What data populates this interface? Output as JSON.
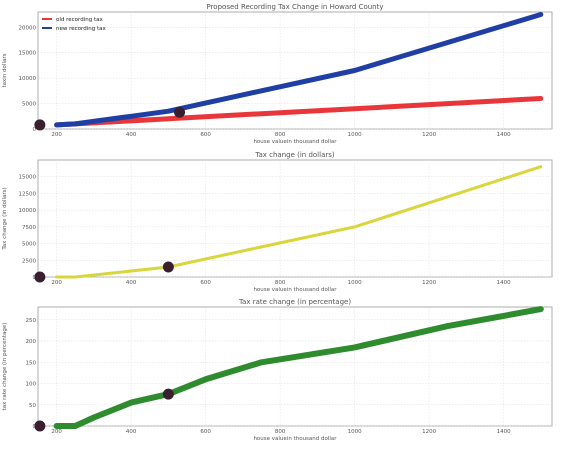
{
  "chart_data": [
    {
      "type": "line",
      "title": "Proposed Recording Tax Change in Howard County",
      "xlabel": "house valuein thousand dollar",
      "ylabel": "taxin dollars",
      "xlim": [
        150,
        1530
      ],
      "ylim": [
        0,
        23000
      ],
      "x_ticks": [
        200,
        400,
        600,
        800,
        1000,
        1200,
        1400
      ],
      "y_ticks": [
        0,
        5000,
        10000,
        15000,
        20000
      ],
      "grid": true,
      "legend": "top-left",
      "series": [
        {
          "name": "old recording tax",
          "color": "#e8363a",
          "x": [
            200,
            250,
            500,
            750,
            1000,
            1250,
            1500
          ],
          "y": [
            800,
            1000,
            2000,
            3000,
            4000,
            5000,
            6000
          ]
        },
        {
          "name": "new recording tax",
          "color": "#1f3fa5",
          "x": [
            200,
            250,
            500,
            750,
            1000,
            1250,
            1500
          ],
          "y": [
            800,
            1000,
            3500,
            7500,
            11500,
            17000,
            22500
          ]
        }
      ],
      "markers": [
        {
          "x": 155,
          "y": 800
        },
        {
          "x": 530,
          "y": 3300
        }
      ]
    },
    {
      "type": "line",
      "title": "Tax change (in dollars)",
      "xlabel": "house valuein thousand dollar",
      "ylabel": "Tax change (in dollars)",
      "xlim": [
        150,
        1530
      ],
      "ylim": [
        0,
        17500
      ],
      "x_ticks": [
        200,
        400,
        600,
        800,
        1000,
        1200,
        1400
      ],
      "y_ticks": [
        0,
        2500,
        5000,
        7500,
        10000,
        12500,
        15000
      ],
      "grid": true,
      "series": [
        {
          "color": "#d8d63a",
          "x": [
            200,
            250,
            500,
            750,
            1000,
            1250,
            1500
          ],
          "y": [
            0,
            0,
            1500,
            4500,
            7500,
            12000,
            16500
          ]
        }
      ],
      "markers": [
        {
          "x": 155,
          "y": 0
        },
        {
          "x": 500,
          "y": 1500
        }
      ]
    },
    {
      "type": "line",
      "title": "Tax rate change (in percentage)",
      "xlabel": "house valuein thousand dollar",
      "ylabel": "tax rate change (in percentage)",
      "xlim": [
        150,
        1530
      ],
      "ylim": [
        0,
        280
      ],
      "x_ticks": [
        200,
        400,
        600,
        800,
        1000,
        1200,
        1400
      ],
      "y_ticks": [
        0,
        50,
        100,
        150,
        200,
        250
      ],
      "grid": true,
      "series": [
        {
          "color": "#2e8b2e",
          "x": [
            200,
            250,
            300,
            400,
            500,
            600,
            750,
            1000,
            1250,
            1500
          ],
          "y": [
            0,
            0,
            20,
            55,
            75,
            110,
            150,
            185,
            235,
            275
          ]
        }
      ],
      "markers": [
        {
          "x": 155,
          "y": 0
        },
        {
          "x": 500,
          "y": 75
        }
      ]
    }
  ]
}
